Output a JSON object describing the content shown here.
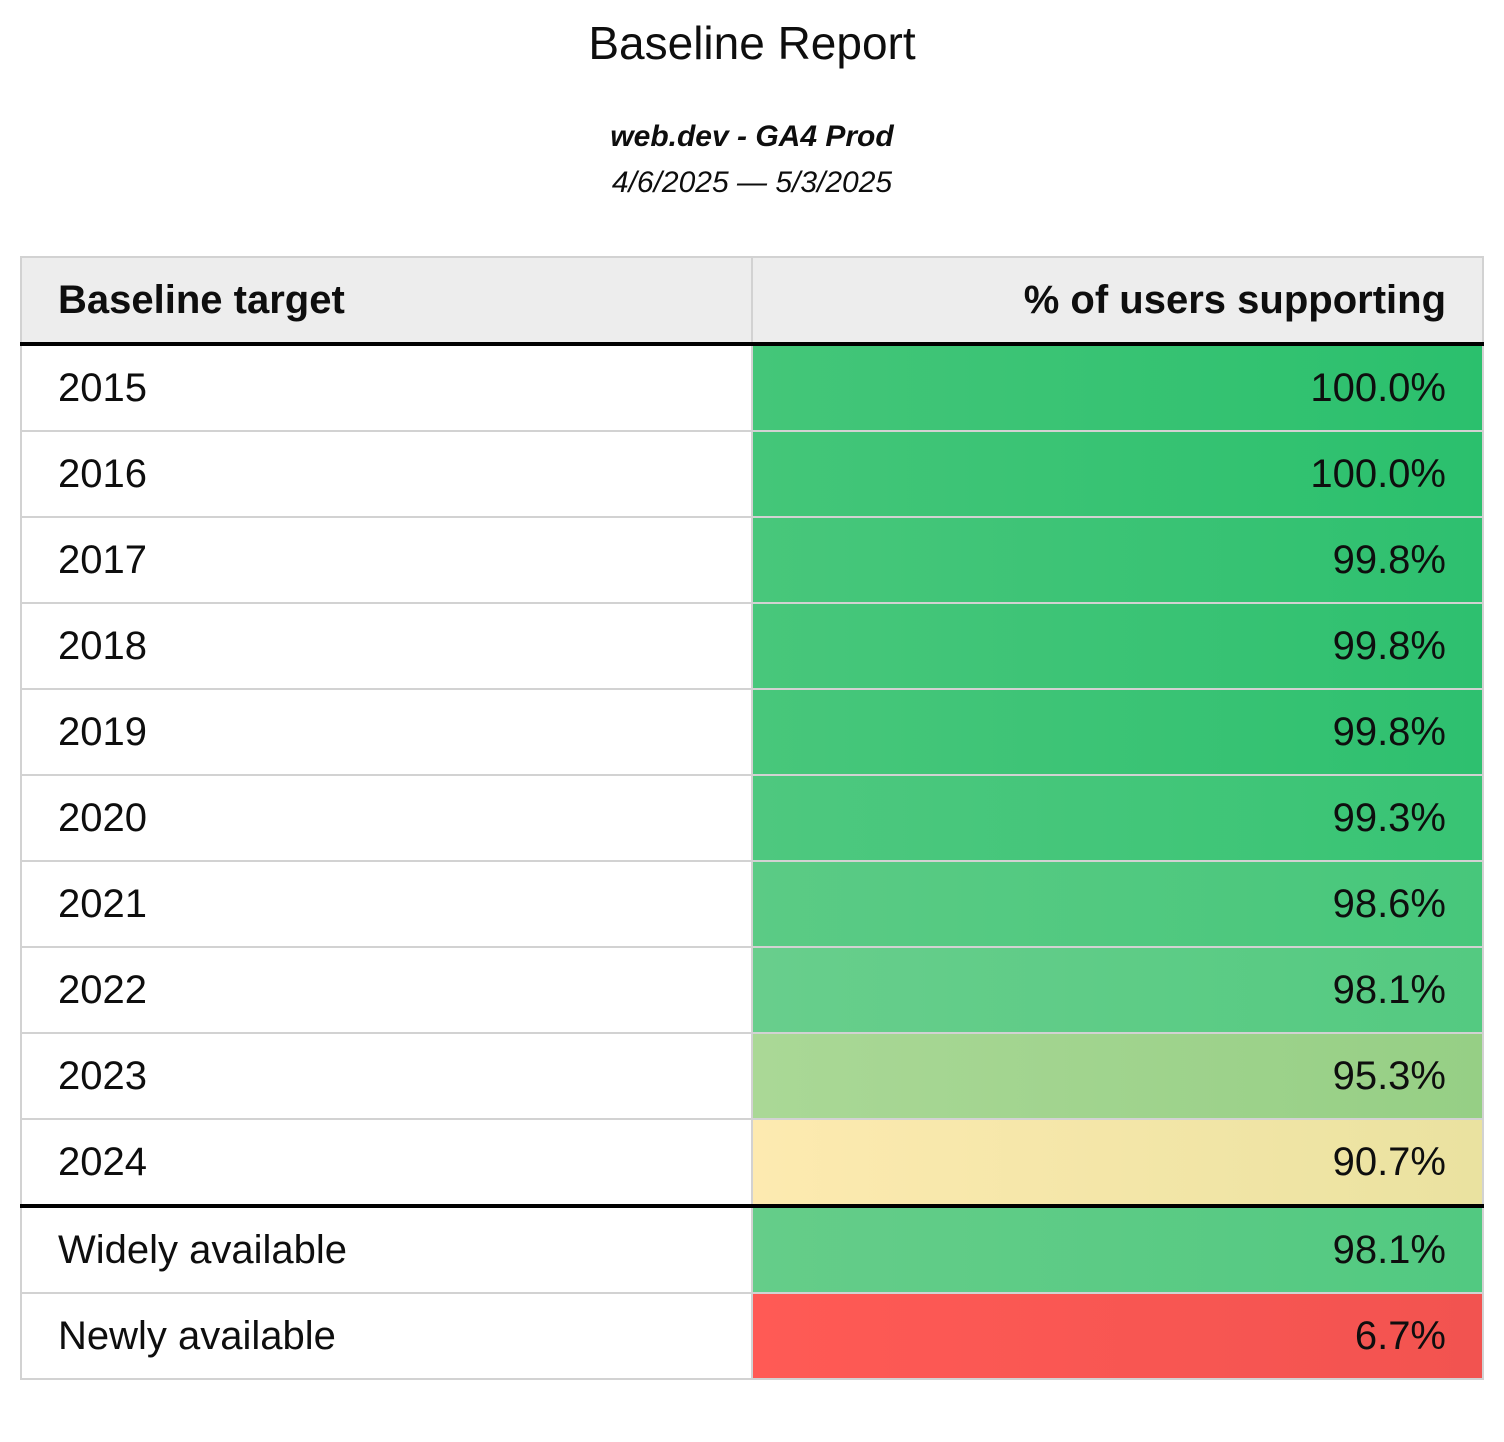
{
  "header": {
    "title": "Baseline Report",
    "subtitle": "web.dev - GA4 Prod",
    "date_range": "4/6/2025 — 5/3/2025"
  },
  "table": {
    "columns": [
      "Baseline target",
      "% of users supporting"
    ],
    "rows": [
      {
        "target": "2015",
        "value": "100.0%",
        "color_left": "#44c679",
        "color_right": "#2bc06d",
        "divider_above": false
      },
      {
        "target": "2016",
        "value": "100.0%",
        "color_left": "#44c679",
        "color_right": "#2bc06d",
        "divider_above": false
      },
      {
        "target": "2017",
        "value": "99.8%",
        "color_left": "#48c77b",
        "color_right": "#2ec06f",
        "divider_above": false
      },
      {
        "target": "2018",
        "value": "99.8%",
        "color_left": "#48c77b",
        "color_right": "#2ec06f",
        "divider_above": false
      },
      {
        "target": "2019",
        "value": "99.8%",
        "color_left": "#48c77b",
        "color_right": "#2ec06f",
        "divider_above": false
      },
      {
        "target": "2020",
        "value": "99.3%",
        "color_left": "#4ec87f",
        "color_right": "#38c474",
        "divider_above": false
      },
      {
        "target": "2021",
        "value": "98.6%",
        "color_left": "#5bcb85",
        "color_right": "#47c77b",
        "divider_above": false
      },
      {
        "target": "2022",
        "value": "98.1%",
        "color_left": "#68ce8c",
        "color_right": "#54ca81",
        "divider_above": false
      },
      {
        "target": "2023",
        "value": "95.3%",
        "color_left": "#aad896",
        "color_right": "#96cf85",
        "divider_above": false
      },
      {
        "target": "2024",
        "value": "90.7%",
        "color_left": "#fdeab0",
        "color_right": "#eae2a0",
        "divider_above": false
      },
      {
        "target": "Widely available",
        "value": "98.1%",
        "color_left": "#65cd89",
        "color_right": "#52c981",
        "divider_above": true
      },
      {
        "target": "Newly available",
        "value": "6.7%",
        "color_left": "#ff5a55",
        "color_right": "#f25350",
        "divider_above": false
      }
    ]
  },
  "colors": {
    "header_background": "#ededed",
    "grid_border": "#d2d2d2",
    "section_border": "#000000",
    "text": "#0e0e0e"
  }
}
